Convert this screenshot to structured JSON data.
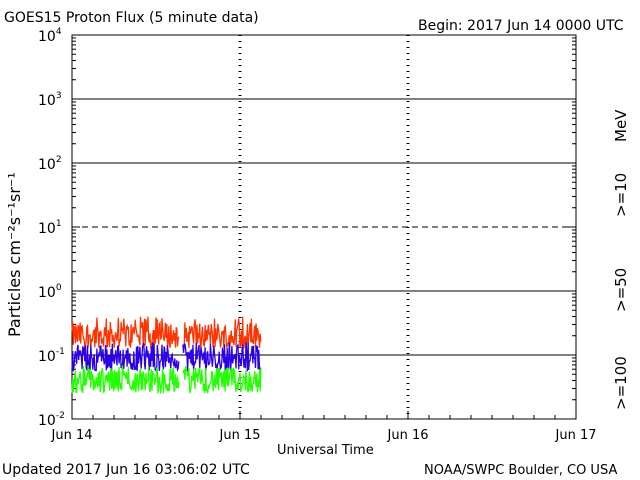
{
  "header": {
    "title": "GOES15 Proton Flux (5 minute data)",
    "begin": "Begin: 2017 Jun 14 0000 UTC"
  },
  "footer": {
    "updated": "Updated 2017 Jun 16 03:06:02 UTC",
    "credit": "NOAA/SWPC Boulder, CO USA"
  },
  "chart_data": {
    "type": "line",
    "title": "GOES15 Proton Flux (5 minute data)",
    "xlabel": "Universal Time",
    "ylabel": "Particles cm⁻²s⁻¹sr⁻¹",
    "yscale": "log",
    "ylim": [
      0.01,
      10000
    ],
    "x_ticks": [
      "Jun 14",
      "Jun 15",
      "Jun 16",
      "Jun 17"
    ],
    "xlim_days": [
      0,
      3
    ],
    "y_tick_exponents": [
      -2,
      -1,
      0,
      1,
      2,
      3,
      4
    ],
    "y_gridlines": [
      0.1,
      1,
      10,
      100,
      1000
    ],
    "dashed_gridline": 10,
    "energy_unit": "MeV",
    "data_end_day": 1.125,
    "gaps_day": [
      [
        0.64,
        0.66
      ]
    ],
    "series": [
      {
        "name": ">=10",
        "color": "#ff3300",
        "typical_value": 0.2,
        "range": [
          0.13,
          0.4
        ]
      },
      {
        "name": ">=50",
        "color": "#2b00e6",
        "typical_value": 0.09,
        "range": [
          0.055,
          0.16
        ]
      },
      {
        "name": ">=100",
        "color": "#22ff00",
        "typical_value": 0.04,
        "range": [
          0.025,
          0.07
        ]
      }
    ]
  }
}
